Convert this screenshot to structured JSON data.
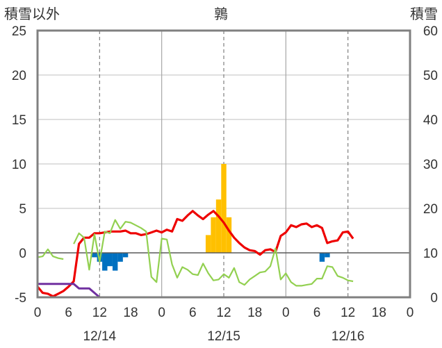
{
  "chart_data": {
    "type": "line",
    "title": "鶉",
    "left_axis_label": "積雪以外",
    "right_axis_label": "積雪",
    "ylim_left": [
      -5,
      25
    ],
    "ylim_right": [
      0,
      60
    ],
    "y_ticks_left": [
      "25",
      "20",
      "15",
      "10",
      "5",
      "0",
      "-5"
    ],
    "y_ticks_right": [
      "60",
      "50",
      "40",
      "30",
      "20",
      "10",
      "0"
    ],
    "x_range": [
      0,
      72
    ],
    "x_tick_hours": [
      0,
      6,
      12,
      18,
      24,
      30,
      36,
      42,
      48,
      54,
      60,
      66,
      72
    ],
    "x_tick_labels": [
      "0",
      "6",
      "12",
      "18",
      "0",
      "6",
      "12",
      "18",
      "0",
      "6",
      "12",
      "18",
      "0"
    ],
    "date_labels": [
      {
        "hour": 12,
        "label": "12/14"
      },
      {
        "hour": 36,
        "label": "12/15"
      },
      {
        "hour": 60,
        "label": "12/16"
      }
    ],
    "solid_gridlines_hours": [
      24,
      48
    ],
    "dashed_gridlines_hours": [
      12,
      36,
      60
    ],
    "colors": {
      "red": "#ee0000",
      "green": "#92d050",
      "purple": "#7030a0",
      "orange": "#ffc000",
      "blue": "#0070c0"
    },
    "series": [
      {
        "key": "red",
        "axis": "left",
        "points": [
          [
            0,
            -3.8
          ],
          [
            1,
            -4.5
          ],
          [
            2,
            -4.6
          ],
          [
            3,
            -4.9
          ],
          [
            4,
            -4.6
          ],
          [
            5,
            -4.3
          ],
          [
            6,
            -3.8
          ],
          [
            7,
            -3.2
          ],
          [
            8,
            1.0
          ],
          [
            9,
            1.7
          ],
          [
            10,
            1.7
          ],
          [
            11,
            2.2
          ],
          [
            12,
            2.2
          ],
          [
            13,
            2.3
          ],
          [
            14,
            2.4
          ],
          [
            15,
            2.4
          ],
          [
            16,
            2.4
          ],
          [
            17,
            2.5
          ],
          [
            18,
            2.2
          ],
          [
            19,
            2.2
          ],
          [
            20,
            2.0
          ],
          [
            21,
            2.1
          ],
          [
            22,
            2.3
          ],
          [
            23,
            2.5
          ],
          [
            24,
            2.3
          ],
          [
            25,
            2.6
          ],
          [
            26,
            2.4
          ],
          [
            27,
            3.8
          ],
          [
            28,
            3.6
          ],
          [
            29,
            4.2
          ],
          [
            30,
            4.7
          ],
          [
            31,
            4.2
          ],
          [
            32,
            3.8
          ],
          [
            33,
            4.3
          ],
          [
            34,
            4.7
          ],
          [
            35,
            4.1
          ],
          [
            36,
            3.4
          ],
          [
            37,
            2.5
          ],
          [
            38,
            1.7
          ],
          [
            39,
            1.1
          ],
          [
            40,
            0.6
          ],
          [
            41,
            0.3
          ],
          [
            42,
            0.2
          ],
          [
            43,
            -0.2
          ],
          [
            44,
            0.3
          ],
          [
            45,
            0.4
          ],
          [
            46,
            0.1
          ],
          [
            47,
            1.9
          ],
          [
            48,
            2.3
          ],
          [
            49,
            3.1
          ],
          [
            50,
            2.9
          ],
          [
            51,
            3.2
          ],
          [
            52,
            3.3
          ],
          [
            53,
            2.9
          ],
          [
            54,
            3.1
          ],
          [
            55,
            2.8
          ],
          [
            56,
            1.1
          ],
          [
            57,
            1.3
          ],
          [
            58,
            1.4
          ],
          [
            59,
            2.3
          ],
          [
            60,
            2.4
          ],
          [
            61,
            1.6
          ]
        ]
      },
      {
        "key": "green",
        "axis": "left",
        "segments": [
          [
            [
              0,
              -0.5
            ],
            [
              1,
              -0.4
            ],
            [
              2,
              0.4
            ],
            [
              3,
              -0.4
            ],
            [
              4,
              -0.6
            ],
            [
              5,
              -0.7
            ]
          ],
          [
            [
              7,
              1.0
            ],
            [
              8,
              2.2
            ],
            [
              9,
              1.7
            ],
            [
              10,
              -1.9
            ],
            [
              11,
              2.1
            ],
            [
              12,
              -1.0
            ],
            [
              13,
              2.4
            ],
            [
              14,
              2.2
            ],
            [
              15,
              3.7
            ],
            [
              16,
              2.7
            ],
            [
              17,
              3.5
            ],
            [
              18,
              3.4
            ],
            [
              19,
              3.1
            ],
            [
              20,
              2.8
            ],
            [
              21,
              2.4
            ],
            [
              22,
              -2.7
            ],
            [
              23,
              -3.3
            ],
            [
              24,
              1.6
            ],
            [
              25,
              1.5
            ],
            [
              26,
              -1.3
            ],
            [
              27,
              -2.8
            ],
            [
              28,
              -1.6
            ],
            [
              29,
              -1.9
            ],
            [
              30,
              -2.4
            ],
            [
              31,
              -2.5
            ],
            [
              32,
              -1.2
            ],
            [
              33,
              -2.3
            ],
            [
              34,
              -3.1
            ],
            [
              35,
              -3.0
            ],
            [
              36,
              -2.4
            ],
            [
              37,
              -2.8
            ],
            [
              38,
              -1.7
            ],
            [
              39,
              -3.3
            ],
            [
              40,
              -3.6
            ],
            [
              41,
              -3.0
            ],
            [
              42,
              -2.6
            ],
            [
              43,
              -2.2
            ],
            [
              44,
              -2.1
            ],
            [
              45,
              -1.5
            ],
            [
              46,
              0.5
            ],
            [
              47,
              -3.0
            ],
            [
              48,
              -2.3
            ],
            [
              49,
              -3.3
            ],
            [
              50,
              -3.7
            ],
            [
              51,
              -3.7
            ],
            [
              52,
              -3.6
            ],
            [
              53,
              -3.5
            ],
            [
              54,
              -2.9
            ],
            [
              55,
              -2.9
            ],
            [
              56,
              -1.5
            ],
            [
              57,
              -1.6
            ],
            [
              58,
              -2.6
            ],
            [
              59,
              -2.8
            ],
            [
              60,
              -3.1
            ],
            [
              61,
              -3.2
            ]
          ]
        ]
      },
      {
        "key": "purple",
        "axis": "left",
        "points": [
          [
            0,
            -3.5
          ],
          [
            7,
            -3.5
          ],
          [
            8,
            -4.0
          ],
          [
            10,
            -4.0
          ],
          [
            11,
            -4.5
          ],
          [
            12,
            -5.0
          ],
          [
            61,
            -5.0
          ]
        ]
      }
    ],
    "bars_up": {
      "key": "orange",
      "axis": "left",
      "bars": [
        [
          33,
          2.0
        ],
        [
          34,
          4.0
        ],
        [
          35,
          6.0
        ],
        [
          36,
          10.0
        ],
        [
          37,
          4.0
        ]
      ]
    },
    "bars_down": {
      "key": "blue",
      "axis": "left",
      "bars": [
        [
          11,
          0.5
        ],
        [
          12,
          1.0
        ],
        [
          13,
          2.0
        ],
        [
          14,
          1.5
        ],
        [
          15,
          2.0
        ],
        [
          16,
          1.0
        ],
        [
          17,
          0.5
        ],
        [
          55,
          1.0
        ],
        [
          56,
          0.5
        ]
      ]
    }
  }
}
